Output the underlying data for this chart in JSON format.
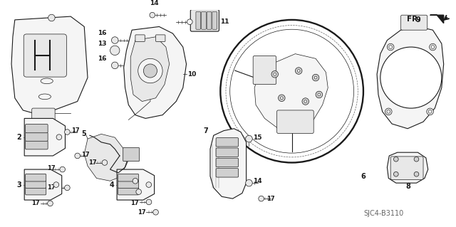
{
  "background_color": "#ffffff",
  "fig_width": 6.4,
  "fig_height": 3.19,
  "dpi": 100,
  "diagram_ref": "SJC4-B3110",
  "corner_label": "FR.",
  "line_color": "#1a1a1a",
  "light_gray": "#aaaaaa",
  "mid_gray": "#666666",
  "fill_light": "#f5f5f5",
  "fill_mid": "#e8e8e8",
  "fill_dark": "#d0d0d0"
}
